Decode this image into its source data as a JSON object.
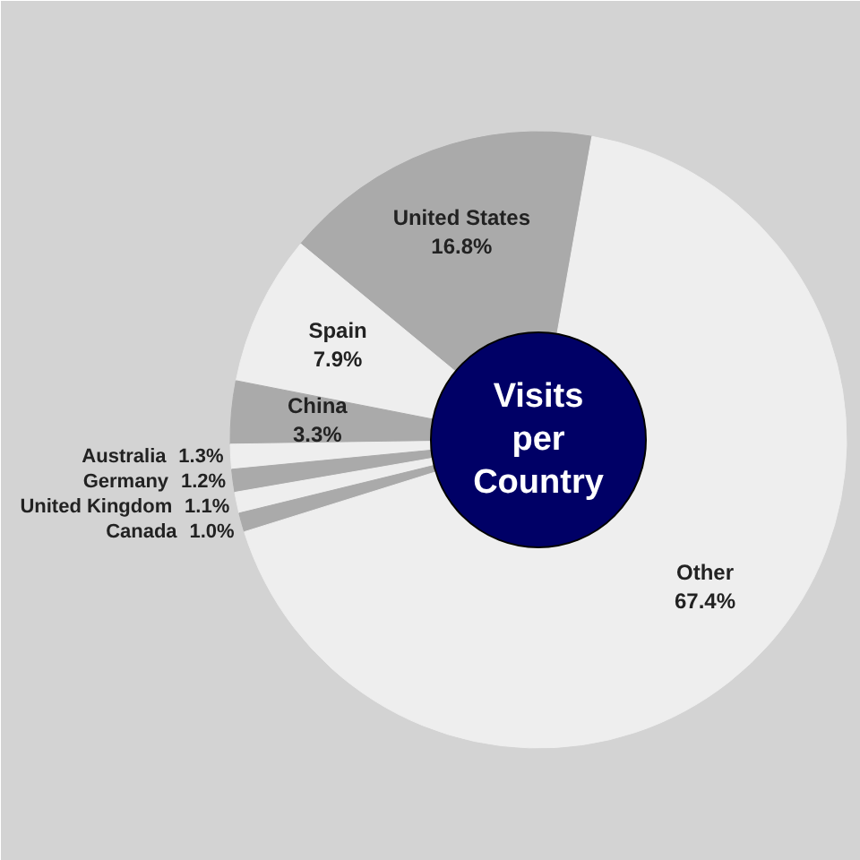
{
  "chart_data": {
    "type": "donut",
    "title": "Visits per Country",
    "categories": [
      "United States",
      "Spain",
      "China",
      "Australia",
      "Germany",
      "United Kingdom",
      "Canada",
      "Other"
    ],
    "values": [
      16.8,
      7.9,
      3.3,
      1.3,
      1.2,
      1.1,
      1.0,
      67.4
    ],
    "value_labels": [
      "16.8%",
      "7.9%",
      "3.3%",
      "1.3%",
      "1.2%",
      "1.1%",
      "1.0%",
      "67.4%"
    ],
    "colors": [
      "#aaaaaa",
      "#eeeeee",
      "#aaaaaa",
      "#eeeeee",
      "#aaaaaa",
      "#eeeeee",
      "#aaaaaa",
      "#eeeeee"
    ]
  }
}
